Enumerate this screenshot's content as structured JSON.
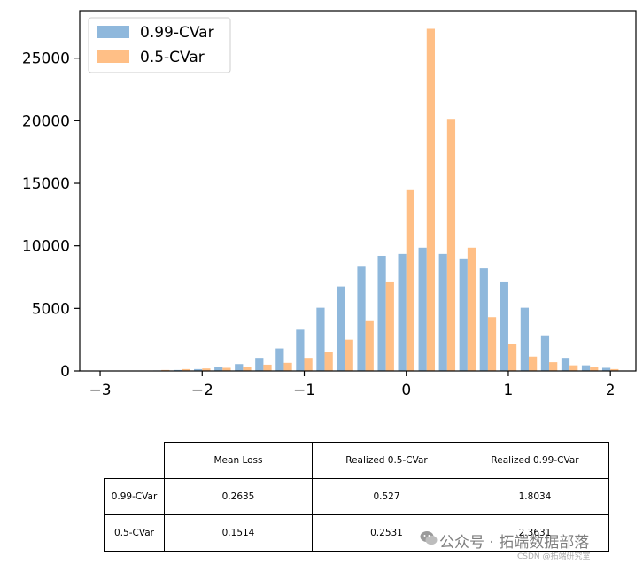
{
  "chart_data": {
    "type": "bar",
    "x_ticks": [
      "−3",
      "−2",
      "−1",
      "0",
      "1",
      "2"
    ],
    "y_ticks": [
      "0",
      "5000",
      "10000",
      "15000",
      "20000",
      "25000"
    ],
    "xlim": [
      -3.2,
      2.25
    ],
    "ylim": [
      0,
      28800
    ],
    "grid": false,
    "legend_position": "top-left",
    "bin_centers": [
      -3.0,
      -2.8,
      -2.6,
      -2.4,
      -2.2,
      -2.0,
      -1.8,
      -1.6,
      -1.4,
      -1.2,
      -1.0,
      -0.8,
      -0.6,
      -0.4,
      -0.2,
      0.0,
      0.2,
      0.4,
      0.6,
      0.8,
      1.0,
      1.2,
      1.4,
      1.6,
      1.8,
      2.0
    ],
    "series": [
      {
        "name": "0.99-CVar",
        "color": "#8fb8dc",
        "values": [
          5,
          10,
          20,
          40,
          80,
          150,
          300,
          550,
          1050,
          1800,
          3300,
          5050,
          6750,
          8400,
          9200,
          9350,
          9850,
          9350,
          9000,
          8200,
          7150,
          5050,
          2850,
          1050,
          450,
          250
        ]
      },
      {
        "name": "0.5-CVar",
        "color": "#ffbf86",
        "values": [
          5,
          10,
          30,
          80,
          150,
          200,
          250,
          300,
          500,
          650,
          1050,
          1500,
          2500,
          4050,
          7150,
          14450,
          27350,
          20150,
          9850,
          4300,
          2150,
          1150,
          700,
          450,
          300,
          150
        ]
      }
    ]
  },
  "table": {
    "headers": [
      "Mean Loss",
      "Realized 0.5-CVar",
      "Realized 0.99-CVar"
    ],
    "rows": [
      {
        "label": "0.99-CVar",
        "cells": [
          "0.2635",
          "0.527",
          "1.8034"
        ]
      },
      {
        "label": "0.5-CVar",
        "cells": [
          "0.1514",
          "0.2531",
          "2.3631"
        ]
      }
    ]
  },
  "watermark": {
    "text": "公众号 · 拓端数据部落",
    "subtext": "CSDN @拓端研究室",
    "icon": "wechat-icon"
  }
}
